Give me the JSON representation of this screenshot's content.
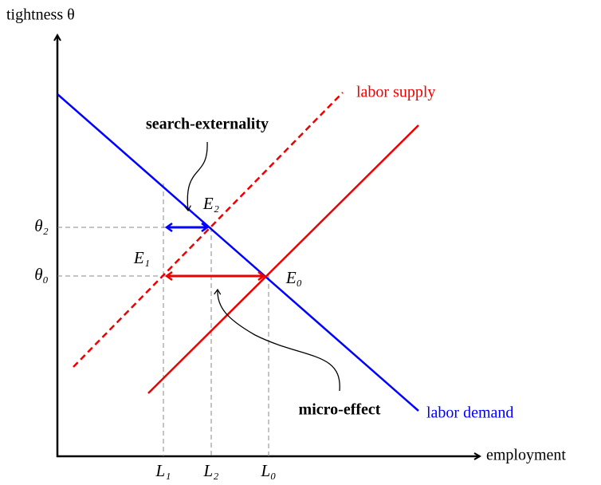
{
  "axes": {
    "y_label": "tightness θ",
    "x_label": "employment"
  },
  "curves": {
    "supply": "labor supply",
    "demand": "labor demand"
  },
  "y_ticks": [
    "θ₂",
    "θ₀"
  ],
  "x_ticks": [
    "L₁",
    "L₂",
    "L₀"
  ],
  "points": [
    "E₂",
    "E₁",
    "E₀"
  ],
  "annotations": [
    "search-externality",
    "micro-effect"
  ]
}
